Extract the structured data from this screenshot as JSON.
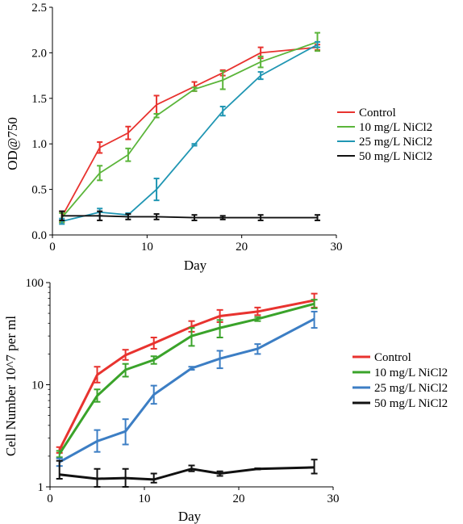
{
  "chart_data": [
    {
      "type": "line",
      "xlabel": "Day",
      "ylabel": "OD@750",
      "xlim": [
        0,
        30
      ],
      "ylim": [
        0,
        2.5
      ],
      "xticks": [
        "0",
        "10",
        "20",
        "30"
      ],
      "yticks": [
        "0.0",
        "0.5",
        "1.0",
        "1.5",
        "2.0",
        "2.5"
      ],
      "legend_position": "center-right",
      "grid": false,
      "series": [
        {
          "name": "Control",
          "color": "#e8332f",
          "x": [
            1,
            5,
            8,
            11,
            15,
            18,
            22,
            28
          ],
          "y": [
            0.2,
            0.96,
            1.12,
            1.43,
            1.63,
            1.78,
            2.0,
            2.06
          ],
          "err": [
            0.06,
            0.06,
            0.07,
            0.1,
            0.05,
            0.03,
            0.06,
            0.03
          ]
        },
        {
          "name": "10 mg/L NiCl2",
          "color": "#5bb53a",
          "x": [
            1,
            5,
            8,
            11,
            15,
            18,
            22,
            28
          ],
          "y": [
            0.19,
            0.68,
            0.88,
            1.31,
            1.6,
            1.7,
            1.9,
            2.12
          ],
          "err": [
            0.05,
            0.08,
            0.07,
            0.02,
            0.02,
            0.1,
            0.06,
            0.1
          ]
        },
        {
          "name": "25 mg/L NiCl2",
          "color": "#2096b3",
          "x": [
            1,
            5,
            8,
            11,
            15,
            18,
            22,
            28
          ],
          "y": [
            0.15,
            0.25,
            0.22,
            0.5,
            0.99,
            1.36,
            1.75,
            2.09
          ],
          "err": [
            0.03,
            0.04,
            0.02,
            0.12,
            0.01,
            0.05,
            0.04,
            0.03
          ]
        },
        {
          "name": "50 mg/L NiCl2",
          "color": "#111111",
          "x": [
            1,
            5,
            8,
            11,
            15,
            18,
            22,
            28
          ],
          "y": [
            0.21,
            0.21,
            0.2,
            0.2,
            0.19,
            0.19,
            0.19,
            0.19
          ],
          "err": [
            0.05,
            0.05,
            0.03,
            0.03,
            0.03,
            0.02,
            0.03,
            0.03
          ]
        }
      ]
    },
    {
      "type": "line",
      "xlabel": "Day",
      "ylabel": "Cell Number 10^7 per ml",
      "xlim": [
        0,
        30
      ],
      "ylim": [
        1,
        100
      ],
      "yscale": "log",
      "xticks": [
        "0",
        "10",
        "20",
        "30"
      ],
      "yticks": [
        "1",
        "10",
        "100"
      ],
      "legend_position": "center-right",
      "grid": false,
      "series": [
        {
          "name": "Control",
          "color": "#e8332f",
          "x": [
            1,
            5,
            8,
            11,
            15,
            18,
            22,
            28
          ],
          "y": [
            2.3,
            12.5,
            19.5,
            25.5,
            37.0,
            47.0,
            52.0,
            67.0
          ],
          "err_low": [
            2.15,
            10.5,
            17.5,
            22.5,
            33.0,
            41.0,
            48.0,
            57.0
          ],
          "err_high": [
            2.45,
            15.0,
            22.0,
            29.0,
            42.0,
            54.0,
            57.0,
            78.0
          ]
        },
        {
          "name": "10 mg/L NiCl2",
          "color": "#3aa32a",
          "x": [
            1,
            5,
            8,
            11,
            15,
            18,
            22,
            28
          ],
          "y": [
            2.1,
            7.8,
            14.0,
            17.5,
            30.0,
            36.0,
            44.0,
            62.0
          ],
          "err_low": [
            1.95,
            6.8,
            12.0,
            16.0,
            24.0,
            29.0,
            42.0,
            56.0
          ],
          "err_high": [
            2.25,
            9.0,
            16.0,
            19.0,
            36.0,
            43.0,
            46.0,
            68.0
          ]
        },
        {
          "name": "25 mg/L NiCl2",
          "color": "#3c7ec4",
          "x": [
            1,
            5,
            8,
            11,
            15,
            18,
            22,
            28
          ],
          "y": [
            1.75,
            2.8,
            3.5,
            8.0,
            14.5,
            18.0,
            22.5,
            44.0
          ],
          "err_low": [
            1.6,
            2.2,
            2.6,
            6.5,
            14.0,
            14.5,
            20.0,
            36.0
          ],
          "err_high": [
            1.9,
            3.6,
            4.6,
            9.8,
            15.0,
            21.5,
            25.0,
            52.0
          ]
        },
        {
          "name": "50 mg/L NiCl2",
          "color": "#111111",
          "x": [
            1,
            5,
            8,
            11,
            15,
            18,
            22,
            28
          ],
          "y": [
            1.32,
            1.2,
            1.22,
            1.18,
            1.5,
            1.35,
            1.5,
            1.55
          ],
          "err_low": [
            1.2,
            1.0,
            1.0,
            1.1,
            1.42,
            1.28,
            1.48,
            1.35
          ],
          "err_high": [
            1.8,
            1.5,
            1.5,
            1.35,
            1.62,
            1.42,
            1.52,
            1.85
          ]
        }
      ]
    }
  ]
}
